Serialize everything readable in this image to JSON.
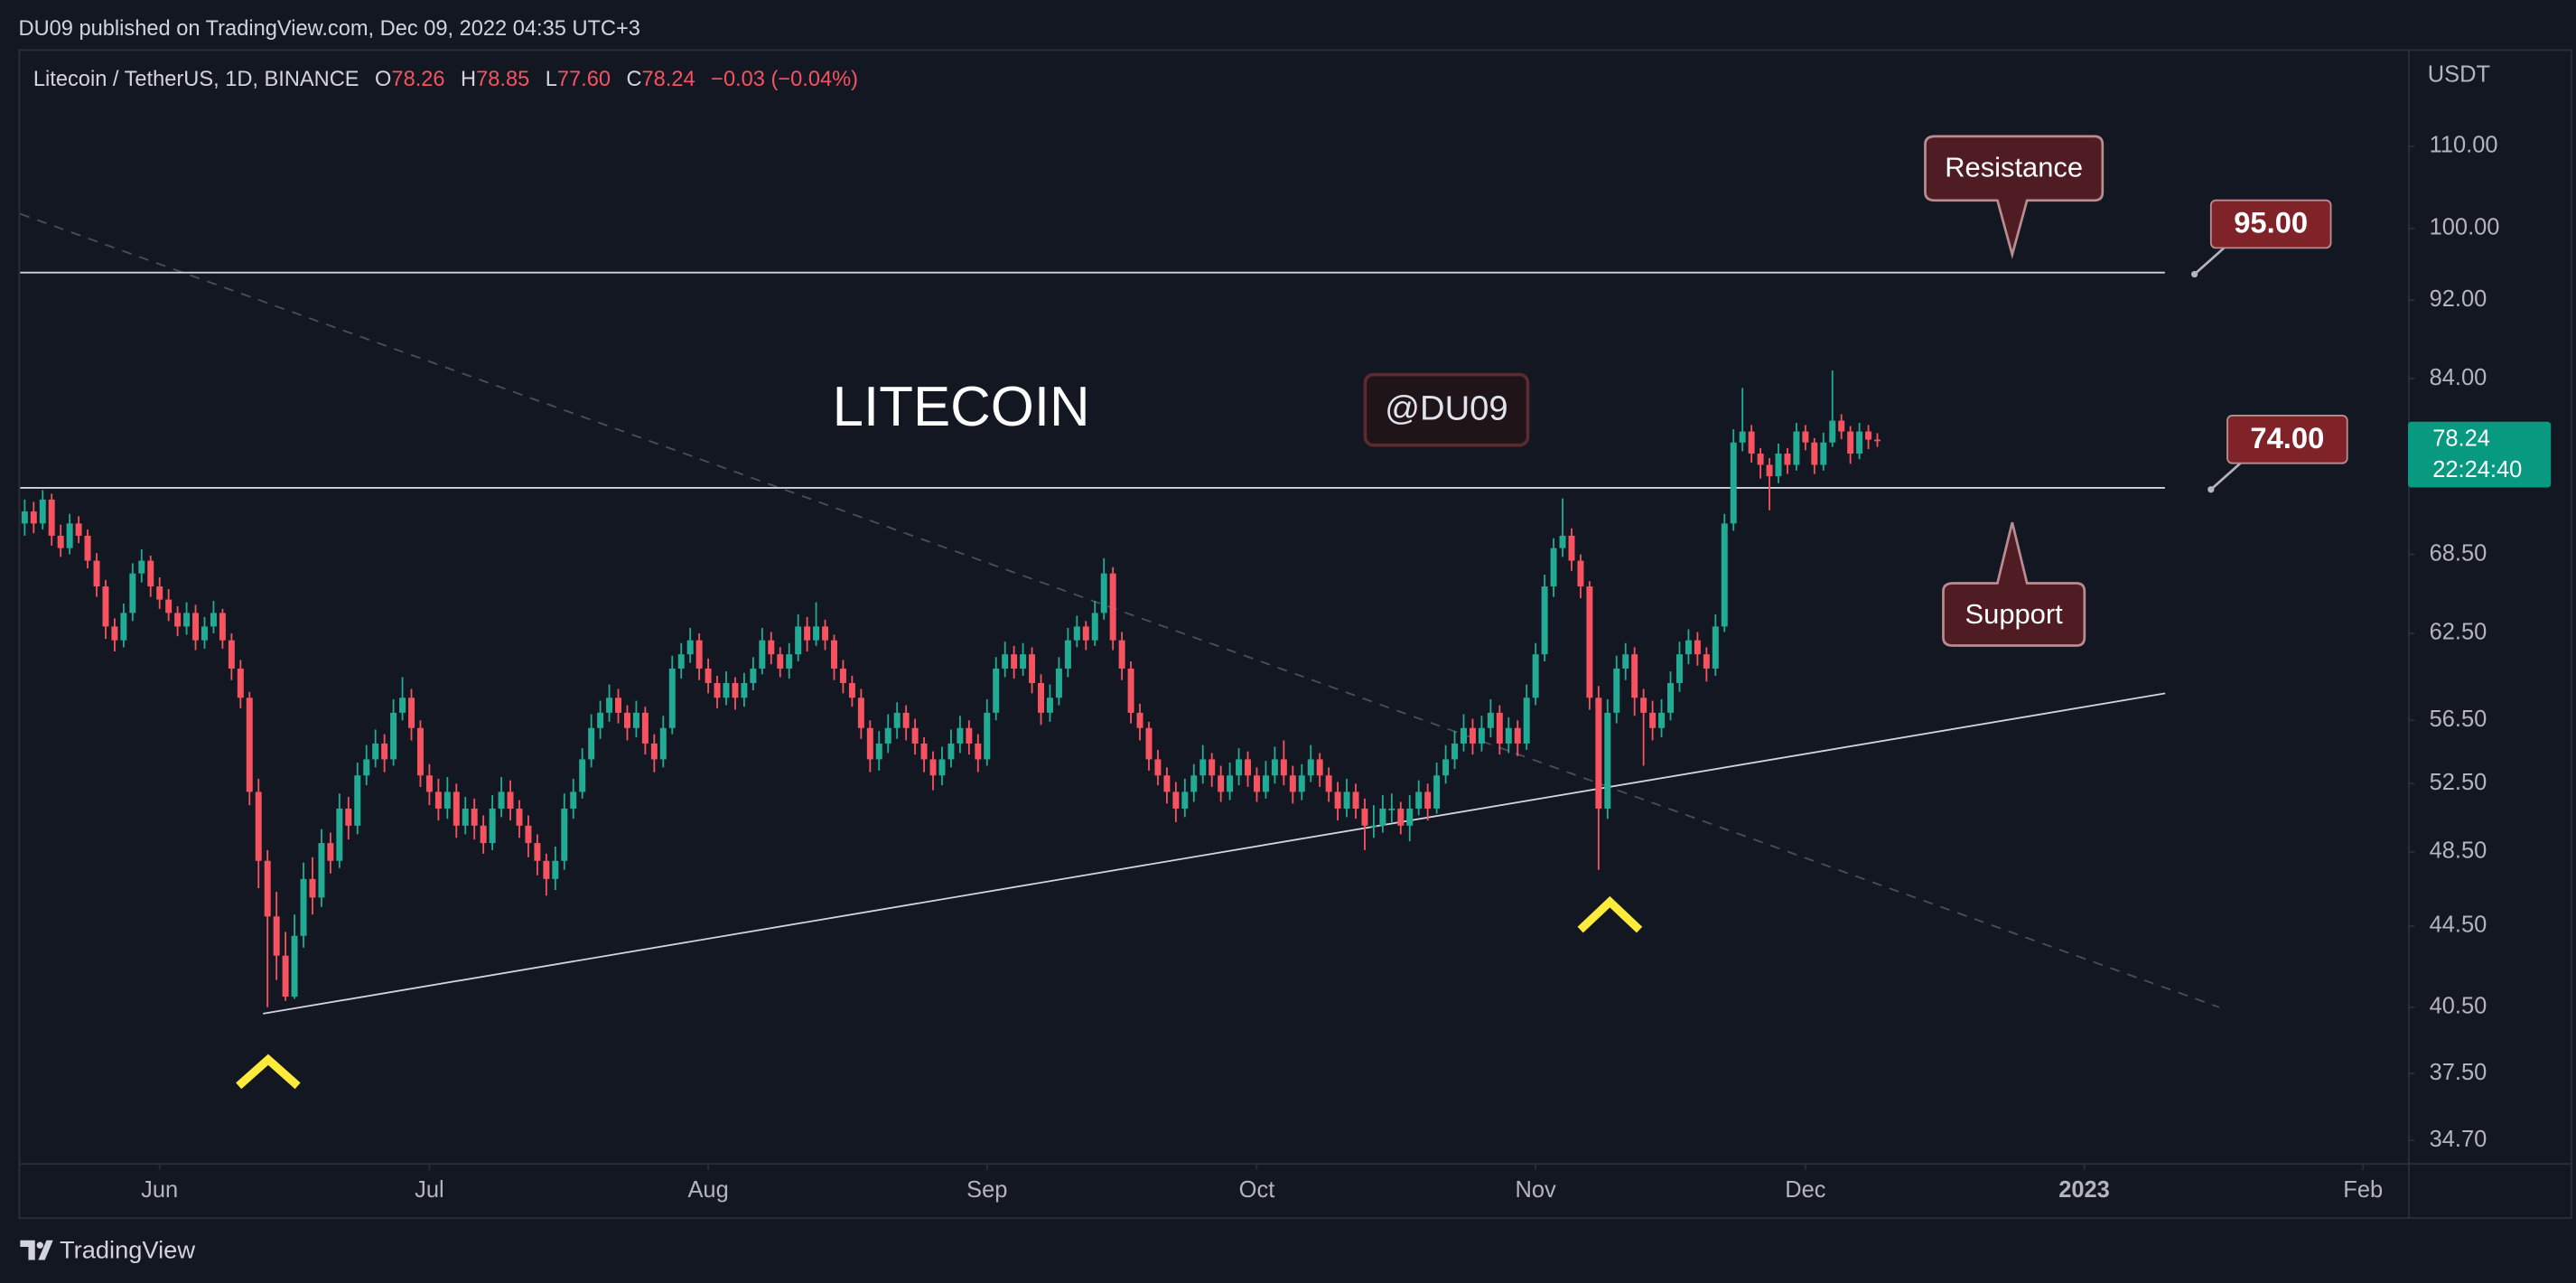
{
  "header": "DU09 published on TradingView.com, Dec 09, 2022 04:35 UTC+3",
  "footer": "TradingView",
  "chart_data": {
    "type": "candlestick",
    "symbol": "Litecoin / TetherUS, 1D, BINANCE",
    "ohlc_legend": [
      {
        "key": "O",
        "label": "78.26"
      },
      {
        "key": "H",
        "label": "78.85"
      },
      {
        "key": "L",
        "label": "77.60"
      },
      {
        "key": "C",
        "label": "78.24"
      }
    ],
    "change": "−0.03 (−0.04%)",
    "currency": "USDT",
    "countdown": "22:24:40",
    "title": "LITECOIN",
    "watermark": "@DU09",
    "callouts": {
      "resistance": "Resistance",
      "support": "Support"
    },
    "up_color": "#22ab94",
    "down_color": "#f7525f",
    "log_scale": true,
    "ylim": [
      33.8,
      123.1
    ],
    "yticks": [
      {
        "value": 110,
        "label": "110.00"
      },
      {
        "value": 100,
        "label": "100.00"
      },
      {
        "value": 92,
        "label": "92.00"
      },
      {
        "value": 84,
        "label": "84.00"
      },
      {
        "value": 68.5,
        "label": "68.50"
      },
      {
        "value": 62.5,
        "label": "62.50"
      },
      {
        "value": 56.5,
        "label": "56.50"
      },
      {
        "value": 52.5,
        "label": "52.50"
      },
      {
        "value": 48.5,
        "label": "48.50"
      },
      {
        "value": 44.5,
        "label": "44.50"
      },
      {
        "value": 40.5,
        "label": "40.50"
      },
      {
        "value": 37.5,
        "label": "37.50"
      },
      {
        "value": 34.7,
        "label": "34.70"
      }
    ],
    "xlim": [
      -15.5,
      250
    ],
    "xticks": [
      {
        "value": 0,
        "label": "Jun"
      },
      {
        "value": 30,
        "label": "Jul"
      },
      {
        "value": 61,
        "label": "Aug"
      },
      {
        "value": 92,
        "label": "Sep"
      },
      {
        "value": 122,
        "label": "Oct"
      },
      {
        "value": 153,
        "label": "Nov"
      },
      {
        "value": 183,
        "label": "Dec"
      },
      {
        "value": 214,
        "label": "2023"
      },
      {
        "value": 245,
        "label": "Feb"
      }
    ],
    "levels": [
      {
        "value": 95,
        "label": "95.00"
      },
      {
        "value": 74,
        "label": "74.00"
      }
    ],
    "trendlines": [
      {
        "style": "solid",
        "points": [
          [
            11.5,
            40.2
          ],
          [
            223,
            58.3
          ]
        ]
      },
      {
        "style": "dashed",
        "points": [
          [
            -15.5,
            101.7
          ],
          [
            229,
            40.5
          ]
        ]
      }
    ],
    "candles": [
      [
        71,
        73,
        70,
        72
      ],
      [
        72,
        72.8,
        70.2,
        71
      ],
      [
        71,
        73.8,
        70.5,
        73
      ],
      [
        73,
        73.5,
        69.2,
        70
      ],
      [
        70,
        70.9,
        68.3,
        69
      ],
      [
        69,
        71.8,
        68.5,
        71
      ],
      [
        71,
        71.6,
        69.4,
        70
      ],
      [
        70,
        70.5,
        67.4,
        68
      ],
      [
        68,
        68.6,
        65.2,
        66
      ],
      [
        66,
        66.5,
        62.1,
        63
      ],
      [
        63,
        63.6,
        61.2,
        62
      ],
      [
        62,
        64.7,
        61.5,
        64
      ],
      [
        64,
        67.8,
        63.4,
        67
      ],
      [
        67,
        68.9,
        66.3,
        68
      ],
      [
        68,
        68.4,
        65.2,
        66
      ],
      [
        66,
        66.7,
        64.3,
        65
      ],
      [
        65,
        65.8,
        63.4,
        64
      ],
      [
        64,
        64.5,
        62.3,
        63
      ],
      [
        63,
        64.8,
        62.4,
        64
      ],
      [
        64,
        64.6,
        61.3,
        62
      ],
      [
        62,
        63.7,
        61.4,
        63
      ],
      [
        63,
        64.9,
        62.5,
        64
      ],
      [
        64,
        64.3,
        61.4,
        62
      ],
      [
        62,
        62.5,
        59.2,
        60
      ],
      [
        60,
        60.6,
        57.3,
        58
      ],
      [
        58,
        58.4,
        51.2,
        52
      ],
      [
        52,
        52.8,
        46.5,
        48
      ],
      [
        48,
        48.6,
        40.5,
        45
      ],
      [
        45,
        46.3,
        41.8,
        43
      ],
      [
        43,
        44.2,
        40.8,
        41
      ],
      [
        41,
        45.1,
        40.9,
        44
      ],
      [
        44,
        47.9,
        43.4,
        47
      ],
      [
        47,
        48.2,
        45.1,
        46
      ],
      [
        46,
        49.8,
        45.5,
        49
      ],
      [
        49,
        49.6,
        47.3,
        48
      ],
      [
        48,
        51.9,
        47.6,
        51
      ],
      [
        51,
        51.7,
        49.2,
        50
      ],
      [
        50,
        53.8,
        49.5,
        53
      ],
      [
        53,
        54.9,
        52.4,
        54
      ],
      [
        54,
        55.9,
        53.5,
        55
      ],
      [
        55,
        55.6,
        53.2,
        54
      ],
      [
        54,
        57.9,
        53.6,
        57
      ],
      [
        57,
        59.4,
        56.5,
        58
      ],
      [
        58,
        58.6,
        55.2,
        56
      ],
      [
        56,
        56.5,
        52.3,
        53
      ],
      [
        53,
        53.7,
        51.2,
        52
      ],
      [
        52,
        52.8,
        50.3,
        51
      ],
      [
        51,
        52.9,
        50.4,
        52
      ],
      [
        52,
        52.5,
        49.3,
        50
      ],
      [
        50,
        51.7,
        49.5,
        51
      ],
      [
        51,
        51.6,
        49.2,
        50
      ],
      [
        50,
        50.6,
        48.4,
        49
      ],
      [
        49,
        51.8,
        48.6,
        51
      ],
      [
        51,
        52.9,
        50.5,
        52
      ],
      [
        52,
        52.7,
        50.3,
        51
      ],
      [
        51,
        51.5,
        49.3,
        50
      ],
      [
        50,
        50.6,
        48.2,
        49
      ],
      [
        49,
        49.5,
        47.2,
        48
      ],
      [
        48,
        48.4,
        46.1,
        47
      ],
      [
        47,
        48.8,
        46.4,
        48
      ],
      [
        48,
        51.9,
        47.5,
        51
      ],
      [
        51,
        52.8,
        50.4,
        52
      ],
      [
        52,
        54.7,
        51.6,
        54
      ],
      [
        54,
        56.9,
        53.5,
        56
      ],
      [
        56,
        57.8,
        55.3,
        57
      ],
      [
        57,
        58.9,
        56.4,
        58
      ],
      [
        58,
        58.6,
        56.3,
        57
      ],
      [
        57,
        57.5,
        55.2,
        56
      ],
      [
        56,
        57.8,
        55.4,
        57
      ],
      [
        57,
        57.4,
        54.3,
        55
      ],
      [
        55,
        55.6,
        53.2,
        54
      ],
      [
        54,
        56.8,
        53.5,
        56
      ],
      [
        56,
        60.9,
        55.6,
        60
      ],
      [
        60,
        61.8,
        59.3,
        61
      ],
      [
        61,
        62.9,
        60.4,
        62
      ],
      [
        62,
        62.5,
        59.2,
        60
      ],
      [
        60,
        60.7,
        58.3,
        59
      ],
      [
        59,
        59.5,
        57.3,
        58
      ],
      [
        58,
        59.8,
        57.5,
        59
      ],
      [
        59,
        59.4,
        57.2,
        58
      ],
      [
        58,
        59.7,
        57.4,
        59
      ],
      [
        59,
        60.8,
        58.5,
        60
      ],
      [
        60,
        62.9,
        59.6,
        62
      ],
      [
        62,
        62.6,
        60.3,
        61
      ],
      [
        61,
        61.5,
        59.4,
        60
      ],
      [
        60,
        61.8,
        59.3,
        61
      ],
      [
        61,
        63.9,
        60.5,
        63
      ],
      [
        63,
        63.7,
        61.2,
        62
      ],
      [
        62,
        64.8,
        61.6,
        63
      ],
      [
        63,
        63.5,
        61.3,
        62
      ],
      [
        62,
        62.4,
        59.2,
        60
      ],
      [
        60,
        60.6,
        58.3,
        59
      ],
      [
        59,
        59.5,
        57.4,
        58
      ],
      [
        58,
        58.6,
        55.3,
        56
      ],
      [
        56,
        56.5,
        53.2,
        54
      ],
      [
        54,
        55.8,
        53.3,
        55
      ],
      [
        55,
        56.9,
        54.4,
        56
      ],
      [
        56,
        57.7,
        55.3,
        57
      ],
      [
        57,
        57.5,
        55.2,
        56
      ],
      [
        56,
        56.6,
        54.3,
        55
      ],
      [
        55,
        55.4,
        53.2,
        54
      ],
      [
        54,
        54.5,
        52.1,
        53
      ],
      [
        53,
        54.8,
        52.4,
        54
      ],
      [
        54,
        55.9,
        53.5,
        55
      ],
      [
        55,
        56.8,
        54.4,
        56
      ],
      [
        56,
        56.5,
        54.3,
        55
      ],
      [
        55,
        55.6,
        53.2,
        54
      ],
      [
        54,
        57.9,
        53.6,
        57
      ],
      [
        57,
        60.8,
        56.5,
        60
      ],
      [
        60,
        61.9,
        59.4,
        61
      ],
      [
        61,
        61.6,
        59.3,
        60
      ],
      [
        60,
        61.8,
        59.5,
        61
      ],
      [
        61,
        61.5,
        58.3,
        59
      ],
      [
        59,
        59.6,
        56.2,
        57
      ],
      [
        57,
        58.9,
        56.4,
        58
      ],
      [
        58,
        60.8,
        57.5,
        60
      ],
      [
        60,
        62.9,
        59.4,
        62
      ],
      [
        62,
        63.8,
        61.5,
        63
      ],
      [
        63,
        63.4,
        61.3,
        62
      ],
      [
        62,
        64.9,
        61.6,
        64
      ],
      [
        64,
        68.2,
        63.5,
        67
      ],
      [
        67,
        67.5,
        61.3,
        62
      ],
      [
        62,
        62.6,
        59.2,
        60
      ],
      [
        60,
        60.5,
        56.3,
        57
      ],
      [
        57,
        57.6,
        55.2,
        56
      ],
      [
        56,
        56.4,
        53.3,
        54
      ],
      [
        54,
        54.6,
        52.4,
        53
      ],
      [
        53,
        53.5,
        51.3,
        52
      ],
      [
        52,
        52.6,
        50.2,
        51
      ],
      [
        51,
        52.8,
        50.5,
        52
      ],
      [
        52,
        53.7,
        51.4,
        53
      ],
      [
        53,
        54.9,
        52.5,
        54
      ],
      [
        54,
        54.4,
        52.3,
        53
      ],
      [
        53,
        53.6,
        51.4,
        52
      ],
      [
        52,
        53.8,
        51.5,
        53
      ],
      [
        53,
        54.7,
        52.4,
        54
      ],
      [
        54,
        54.5,
        52.3,
        53
      ],
      [
        53,
        53.5,
        51.4,
        52
      ],
      [
        52,
        53.9,
        51.6,
        53
      ],
      [
        53,
        54.8,
        52.5,
        54
      ],
      [
        54,
        55.2,
        52.4,
        53
      ],
      [
        53,
        53.6,
        51.3,
        52
      ],
      [
        52,
        53.7,
        51.5,
        53
      ],
      [
        53,
        54.9,
        52.6,
        54
      ],
      [
        54,
        54.4,
        52.3,
        53
      ],
      [
        53,
        53.5,
        51.4,
        52
      ],
      [
        52,
        52.6,
        50.3,
        51
      ],
      [
        51,
        52.8,
        50.5,
        52
      ],
      [
        52,
        52.5,
        50.4,
        51
      ],
      [
        51,
        51.6,
        48.6,
        50
      ],
      [
        50,
        51.2,
        49.3,
        50
      ],
      [
        50,
        51.8,
        49.6,
        51
      ],
      [
        51,
        51.9,
        50.2,
        51
      ],
      [
        51,
        51.4,
        49.5,
        50
      ],
      [
        50,
        51.8,
        49.1,
        51
      ],
      [
        51,
        52.7,
        50.6,
        52
      ],
      [
        52,
        52.5,
        50.3,
        51
      ],
      [
        51,
        53.8,
        50.7,
        53
      ],
      [
        53,
        54.9,
        52.5,
        54
      ],
      [
        54,
        55.8,
        53.4,
        55
      ],
      [
        55,
        56.9,
        54.5,
        56
      ],
      [
        56,
        56.6,
        54.3,
        55
      ],
      [
        55,
        56.8,
        54.5,
        56
      ],
      [
        56,
        57.9,
        55.4,
        57
      ],
      [
        57,
        57.5,
        54.3,
        55
      ],
      [
        55,
        56.7,
        54.4,
        56
      ],
      [
        56,
        56.5,
        54.2,
        55
      ],
      [
        55,
        58.9,
        54.6,
        58
      ],
      [
        58,
        61.8,
        57.5,
        61
      ],
      [
        61,
        66.9,
        60.5,
        66
      ],
      [
        66,
        69.8,
        65.2,
        69
      ],
      [
        69,
        73.1,
        68.3,
        70
      ],
      [
        70,
        70.6,
        67.2,
        68
      ],
      [
        68,
        68.5,
        65.1,
        66
      ],
      [
        66,
        66.4,
        57.2,
        58
      ],
      [
        58,
        58.8,
        47.5,
        51
      ],
      [
        51,
        57.9,
        50.4,
        57
      ],
      [
        57,
        60.9,
        56.3,
        60
      ],
      [
        60,
        61.8,
        59.2,
        61
      ],
      [
        61,
        61.5,
        56.8,
        58
      ],
      [
        58,
        58.6,
        53.6,
        57
      ],
      [
        57,
        57.8,
        55.2,
        56
      ],
      [
        56,
        57.9,
        55.4,
        57
      ],
      [
        57,
        59.8,
        56.5,
        59
      ],
      [
        59,
        61.9,
        58.4,
        61
      ],
      [
        61,
        62.8,
        60.3,
        62
      ],
      [
        62,
        62.6,
        60.2,
        61
      ],
      [
        61,
        61.5,
        59.1,
        60
      ],
      [
        60,
        63.9,
        59.5,
        63
      ],
      [
        63,
        71.8,
        62.6,
        71
      ],
      [
        71,
        79.2,
        70.4,
        78
      ],
      [
        78,
        83.1,
        77.2,
        79
      ],
      [
        79,
        79.6,
        76.2,
        77
      ],
      [
        77,
        77.5,
        74.8,
        76
      ],
      [
        76,
        76.6,
        72.1,
        75
      ],
      [
        75,
        77.9,
        74.4,
        77
      ],
      [
        77,
        77.5,
        75.2,
        76
      ],
      [
        76,
        79.8,
        75.5,
        79
      ],
      [
        79,
        79.6,
        77.3,
        78
      ],
      [
        78,
        78.4,
        75.2,
        76
      ],
      [
        76,
        78.9,
        75.5,
        78
      ],
      [
        78,
        84.8,
        77.6,
        80
      ],
      [
        80,
        80.6,
        78.3,
        79
      ],
      [
        79,
        79.5,
        76.1,
        77
      ],
      [
        77,
        79.8,
        76.5,
        79
      ],
      [
        79,
        79.6,
        77.4,
        78.26
      ],
      [
        78.26,
        78.85,
        77.6,
        78.24
      ]
    ]
  }
}
